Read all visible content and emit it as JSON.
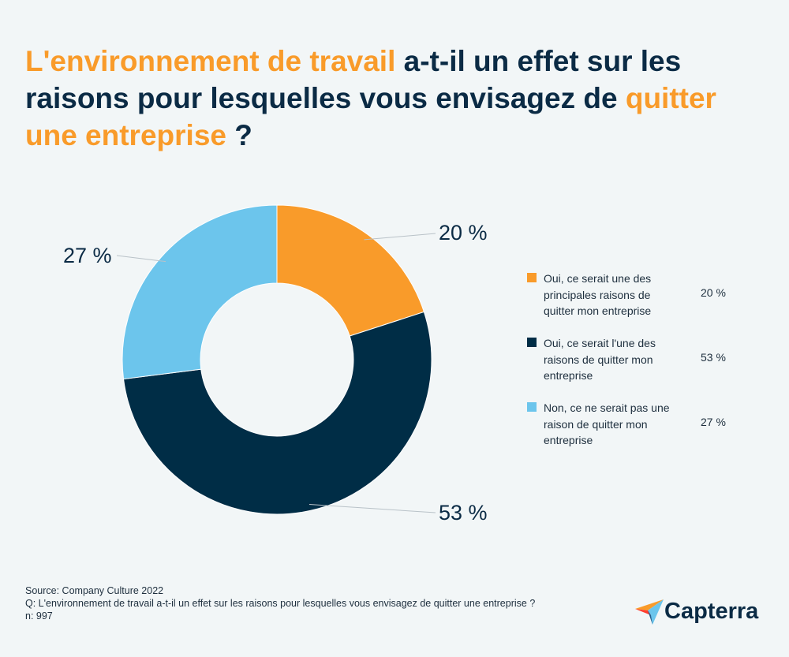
{
  "title": {
    "part1": "L'environnement de travail",
    "part2": " a-t-il un effet sur les raisons pour lesquelles vous envisagez de ",
    "part3": "quitter une entreprise",
    "part4": " ?"
  },
  "colors": {
    "orange": "#f99b2a",
    "navy": "#002d46",
    "light_blue": "#6cc5ec",
    "title_dark": "#0b2b45"
  },
  "chart_data": {
    "type": "pie",
    "donut": true,
    "slices": [
      {
        "label": "Oui, ce serait une des principales raisons de quitter mon entreprise",
        "value": 20,
        "display": "20 %",
        "color": "#f99b2a"
      },
      {
        "label": "Oui, ce serait l'une des raisons de quitter mon entreprise",
        "value": 53,
        "display": "53 %",
        "color": "#002d46"
      },
      {
        "label": "Non, ce ne serait pas une raison de quitter mon entreprise",
        "value": 27,
        "display": "27 %",
        "color": "#6cc5ec"
      }
    ],
    "legend_position": "right"
  },
  "footer": {
    "source": "Source: Company Culture 2022",
    "question": "Q: L'environnement de travail a-t-il un effet sur les raisons pour lesquelles vous envisagez de quitter une entreprise ?",
    "n": "n: 997"
  },
  "logo": {
    "text": "Capterra",
    "icon": "capterra-arrow-icon"
  }
}
